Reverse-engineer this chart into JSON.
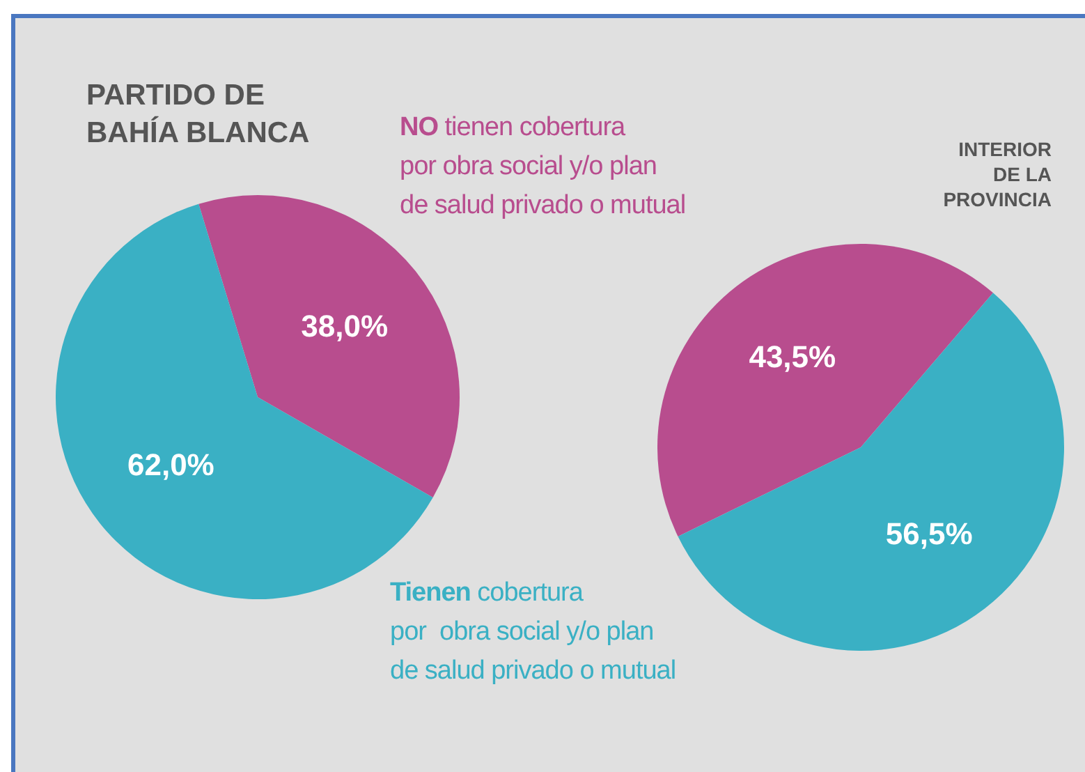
{
  "chart_data": [
    {
      "type": "pie",
      "title": "PARTIDO DE\nBAHÍA BLANCA",
      "categories": [
        "NO tienen cobertura\npor obra social y/o plan\nde salud privado o mutual",
        "Tienen cobertura\npor  obra social y/o plan\nde salud privado o mutual"
      ],
      "values": [
        38.0,
        62.0
      ],
      "colors": [
        "#b84d8e",
        "#3ab0c4"
      ],
      "value_labels": [
        "38,0%",
        "62,0%"
      ]
    },
    {
      "type": "pie",
      "title": "INTERIOR\nDE LA\nPROVINCIA",
      "categories": [
        null,
        null
      ],
      "values": [
        43.5,
        56.5
      ],
      "colors": [
        "#b84d8e",
        "#3ab0c4"
      ],
      "value_labels": [
        "43,5%",
        "56,5%"
      ]
    }
  ]
}
